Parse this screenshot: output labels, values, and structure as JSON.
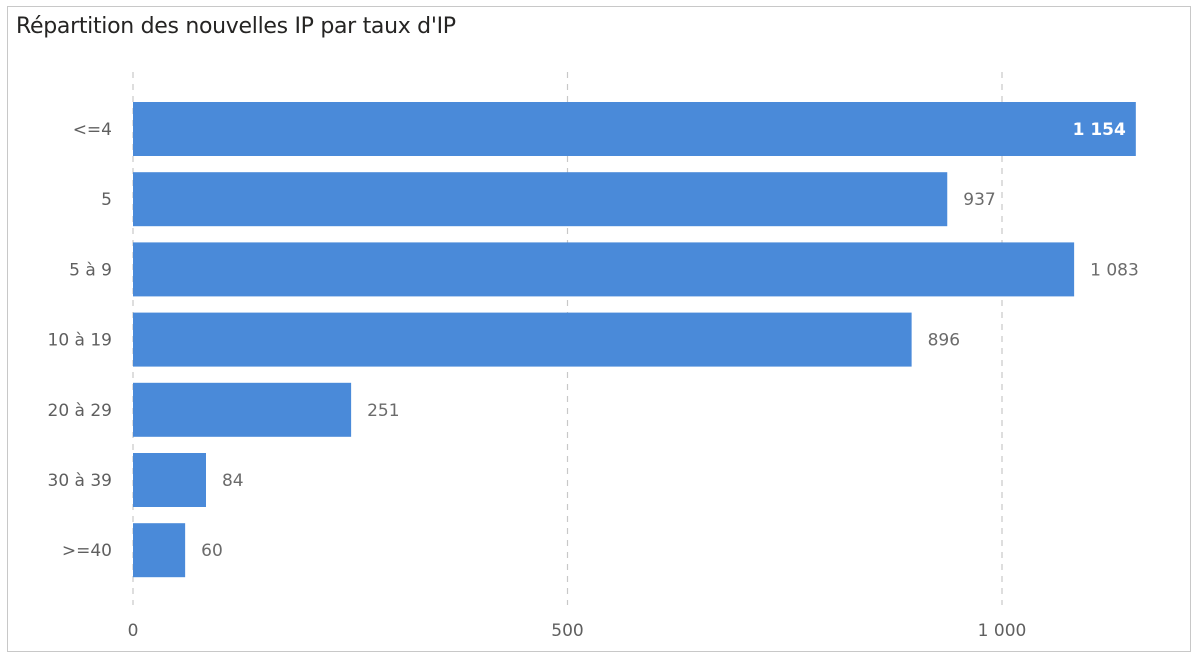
{
  "chart_data": {
    "type": "bar",
    "orientation": "horizontal",
    "title": "Répartition des nouvelles IP par taux d'IP",
    "categories": [
      "<=4",
      "5",
      "5 à 9",
      "10 à 19",
      "20 à 29",
      "30 à 39",
      ">=40"
    ],
    "values": [
      1154,
      937,
      1083,
      896,
      251,
      84,
      60
    ],
    "value_labels": [
      "1 154",
      "937",
      "1 083",
      "896",
      "251",
      "84",
      "60"
    ],
    "xlim": [
      0,
      1200
    ],
    "xticks": [
      0,
      500,
      1000
    ],
    "xtick_labels": [
      "0",
      "500",
      "1 000"
    ],
    "grid": "vertical dashed",
    "bar_color": "#4a8ad9",
    "xlabel": "",
    "ylabel": ""
  }
}
